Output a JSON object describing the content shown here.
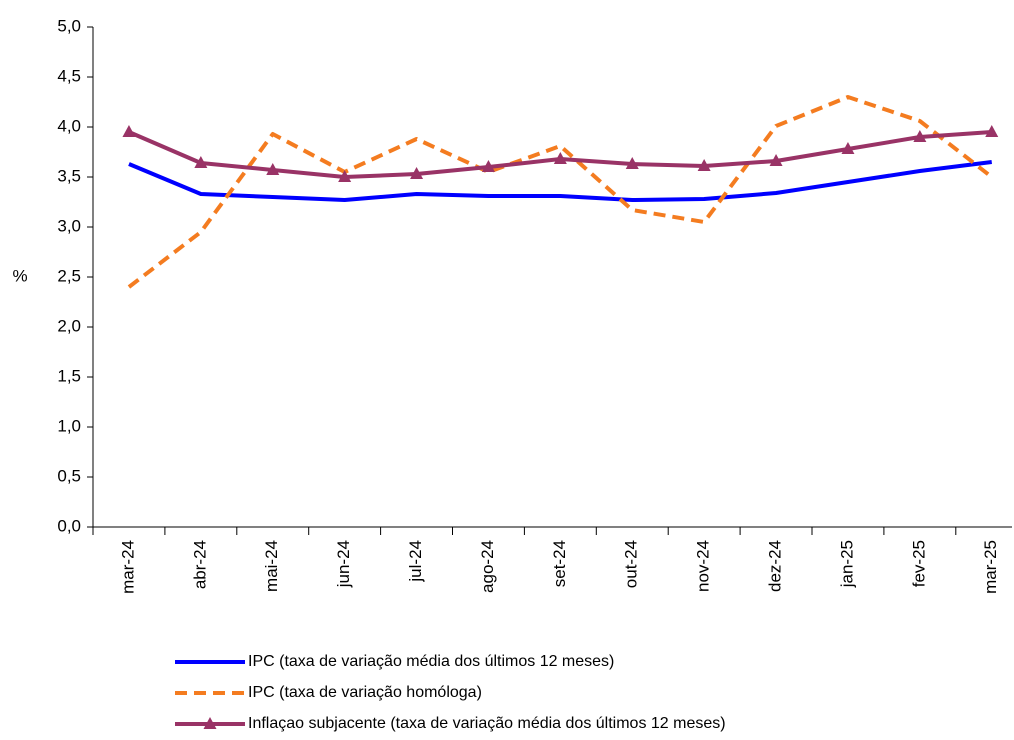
{
  "chart_data": {
    "type": "line",
    "y_label": "%",
    "categories": [
      "mar-24",
      "abr-24",
      "mai-24",
      "jun-24",
      "jul-24",
      "ago-24",
      "set-24",
      "out-24",
      "nov-24",
      "dez-24",
      "jan-25",
      "fev-25",
      "mar-25"
    ],
    "ylim": [
      0,
      5
    ],
    "yticks": [
      {
        "value": 0,
        "label": "0,0"
      },
      {
        "value": 0.5,
        "label": "0,5"
      },
      {
        "value": 1,
        "label": "1,0"
      },
      {
        "value": 1.5,
        "label": "1,5"
      },
      {
        "value": 2,
        "label": "2,0"
      },
      {
        "value": 2.5,
        "label": "2,5"
      },
      {
        "value": 3,
        "label": "3,0"
      },
      {
        "value": 3.5,
        "label": "3,5"
      },
      {
        "value": 4,
        "label": "4,0"
      },
      {
        "value": 4.5,
        "label": "4,5"
      },
      {
        "value": 5,
        "label": "5,0"
      }
    ],
    "series": [
      {
        "name": "IPC (taxa de variação média dos últimos 12 meses)",
        "color": "#0000ff",
        "style": "solid",
        "marker": "none",
        "values": [
          3.63,
          3.33,
          3.3,
          3.27,
          3.33,
          3.31,
          3.31,
          3.27,
          3.28,
          3.34,
          3.45,
          3.56,
          3.65
        ]
      },
      {
        "name": "IPC (taxa de variação homóloga)",
        "color": "#f47c20",
        "style": "dashed",
        "marker": "none",
        "values": [
          2.4,
          2.95,
          3.93,
          3.55,
          3.88,
          3.55,
          3.81,
          3.17,
          3.05,
          4.01,
          4.3,
          4.06,
          3.5
        ]
      },
      {
        "name": "Inflaçao subjacente (taxa de variação média dos últimos 12 meses)",
        "color": "#993366",
        "style": "solid",
        "marker": "triangle",
        "values": [
          3.95,
          3.64,
          3.57,
          3.5,
          3.53,
          3.6,
          3.68,
          3.63,
          3.61,
          3.66,
          3.78,
          3.9,
          3.95
        ]
      }
    ]
  }
}
